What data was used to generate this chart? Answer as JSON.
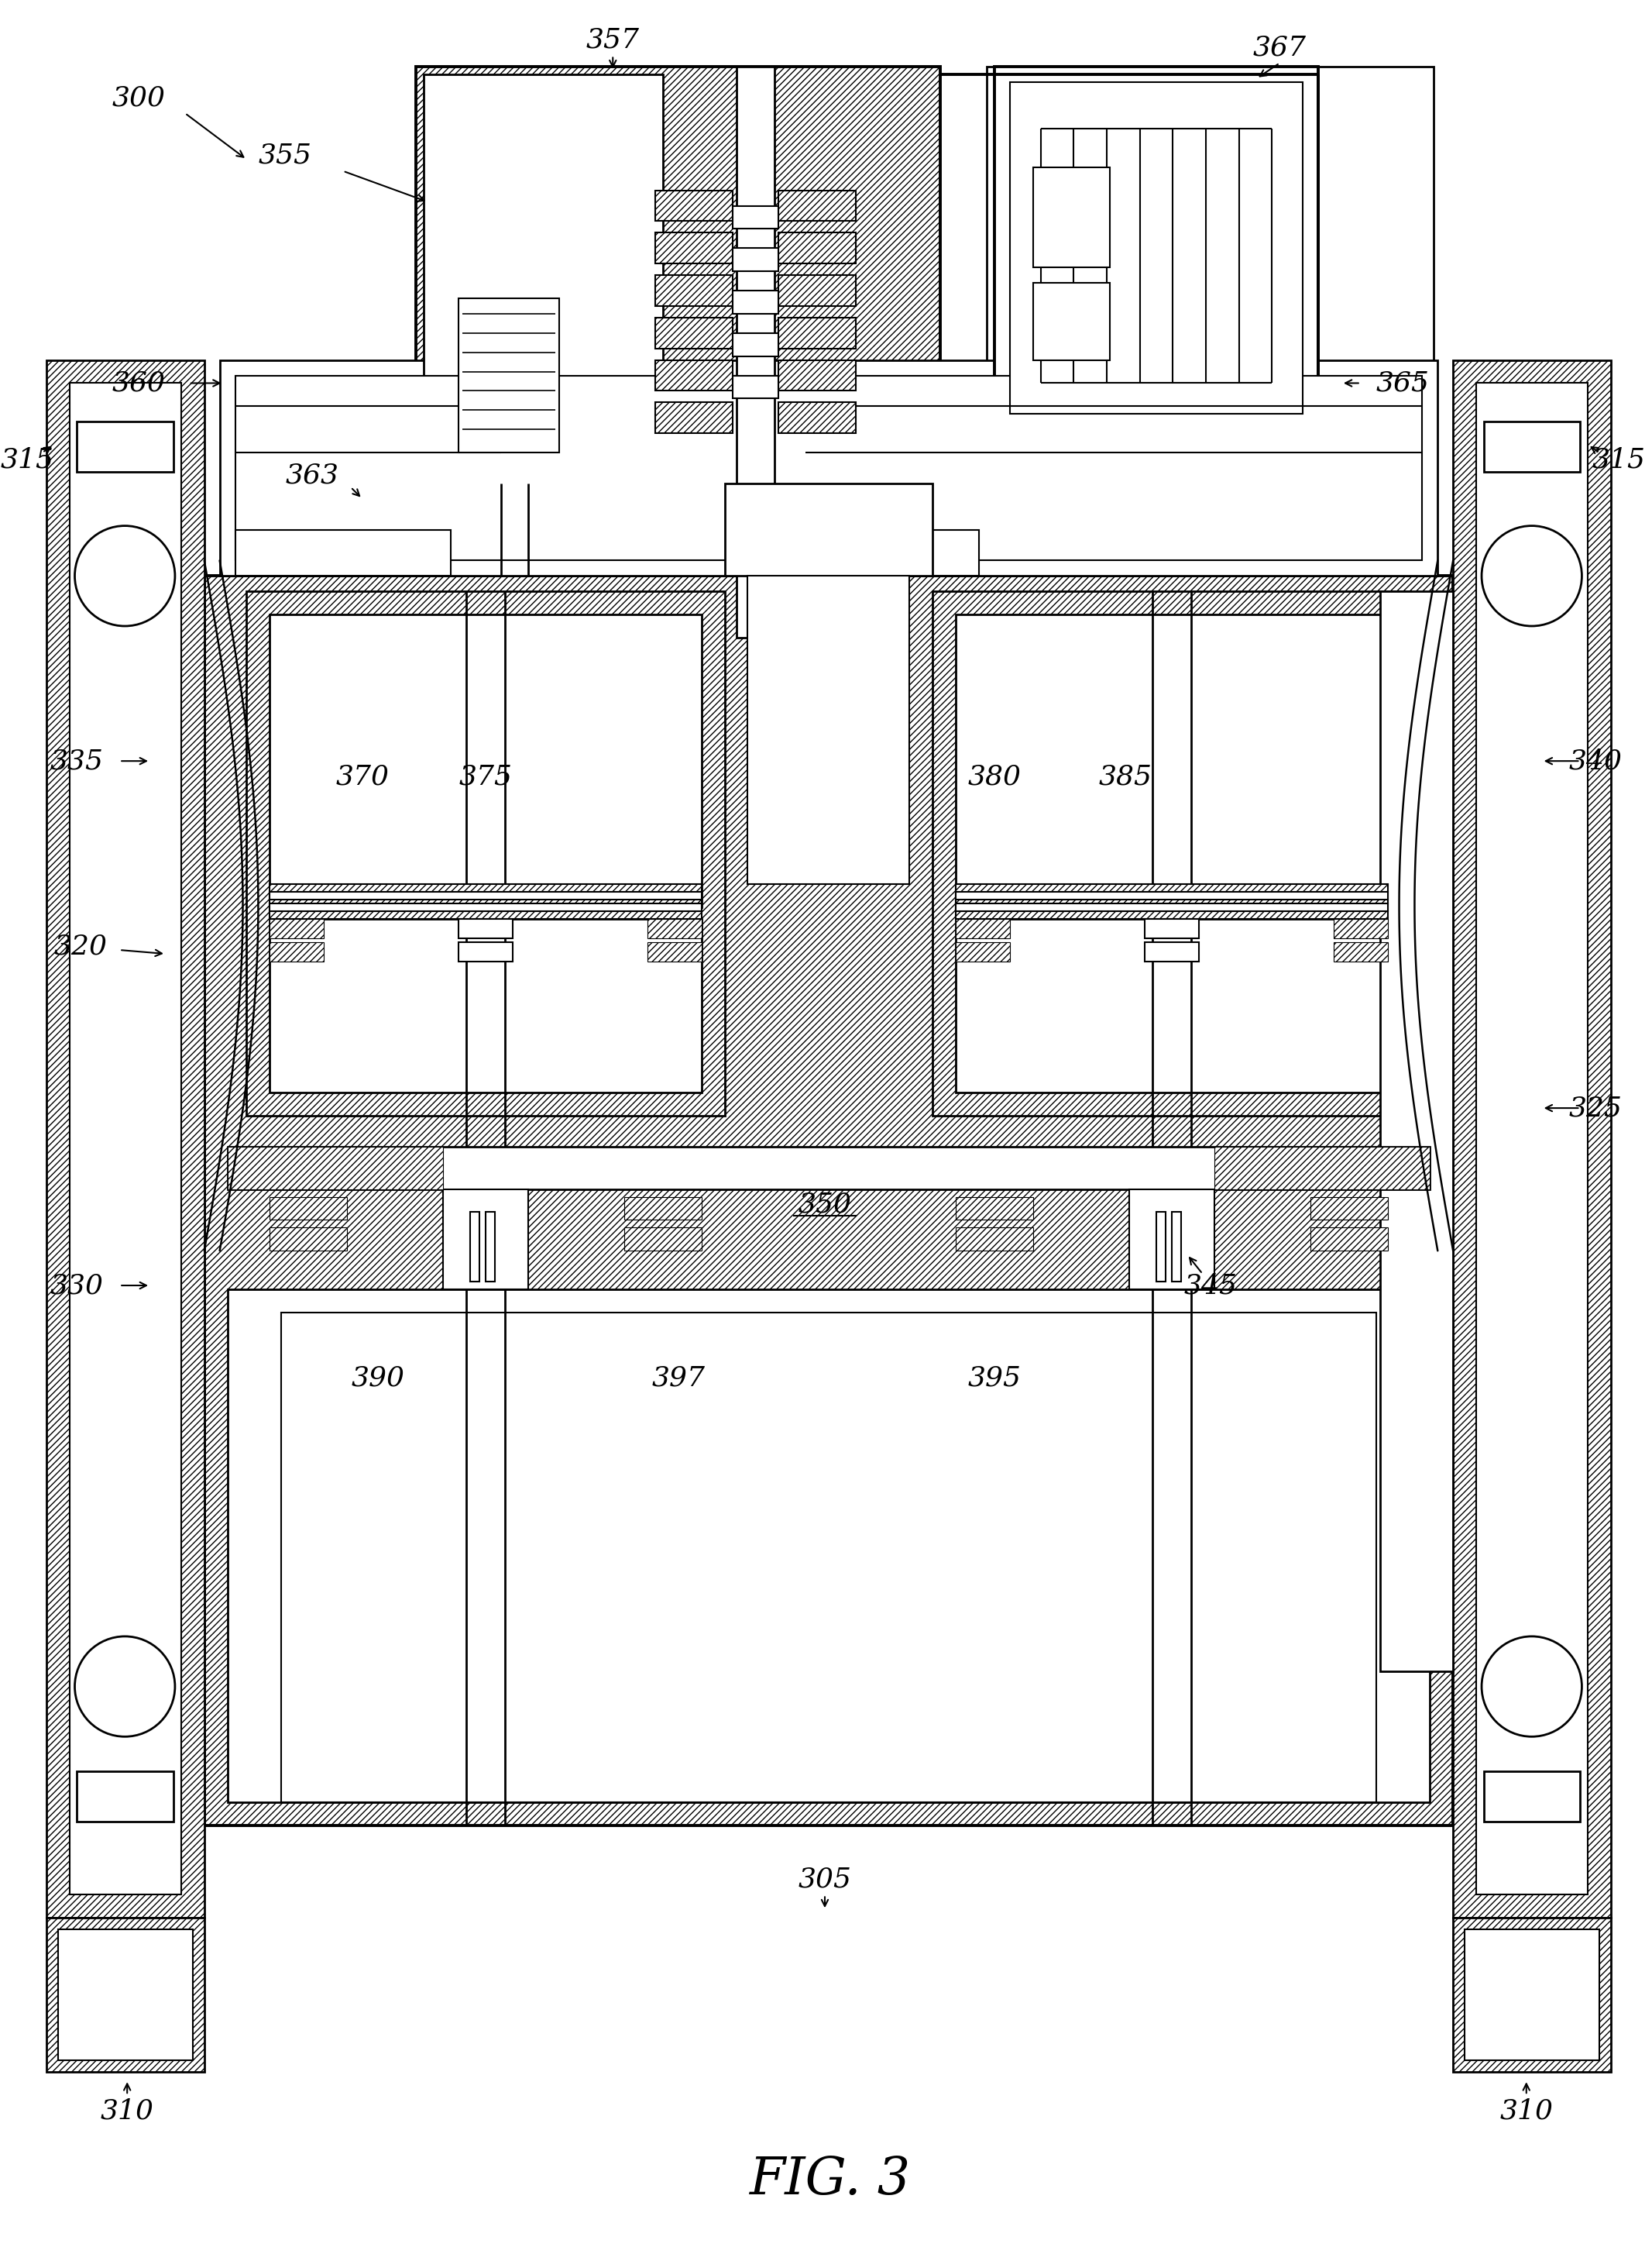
{
  "bg_color": "#ffffff",
  "fig_label": "FIG. 3",
  "lw_thin": 1.5,
  "lw_med": 2.0,
  "lw_thick": 2.8
}
